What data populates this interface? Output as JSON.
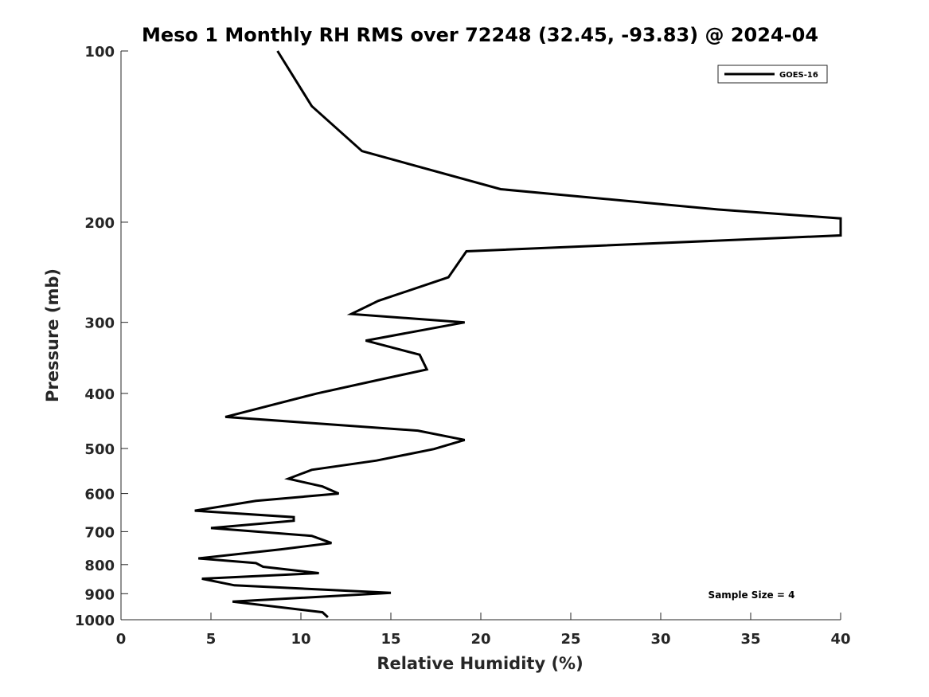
{
  "chart_data": {
    "type": "line",
    "title": "Meso 1 Monthly RH RMS over 72248 (32.45, -93.83) @ 2024-04",
    "xlabel": "Relative Humidity (%)",
    "ylabel": "Pressure (mb)",
    "xlim": [
      0,
      40
    ],
    "ylim": [
      100,
      1000
    ],
    "y_scale": "log",
    "y_direction": "reversed",
    "x_ticks": [
      0,
      5,
      10,
      15,
      20,
      25,
      30,
      35,
      40
    ],
    "y_ticks": [
      100,
      200,
      300,
      400,
      500,
      600,
      700,
      800,
      900,
      1000
    ],
    "grid": false,
    "legend_position": "top-right",
    "series": [
      {
        "name": "GOES-16",
        "color": "#000000",
        "x": [
          8.7,
          10.6,
          13.4,
          21.1,
          33.2,
          40,
          40,
          19.2,
          18.2,
          14.3,
          12.8,
          19.1,
          13.6,
          16.6,
          17.0,
          14.1,
          10.9,
          5.8,
          16.5,
          19.1,
          17.4,
          14.2,
          10.6,
          9.3,
          11.2,
          12.1,
          7.5,
          4.1,
          9.6,
          9.6,
          5.0,
          10.6,
          11.7,
          8.9,
          4.3,
          7.5,
          7.9,
          11.0,
          4.5,
          6.3,
          15.0,
          6.2,
          11.2,
          11.5
        ],
        "y": [
          100,
          125,
          150,
          175,
          190,
          197,
          211,
          225,
          250,
          275,
          290,
          300,
          323,
          342,
          363,
          380,
          400,
          440,
          465,
          483,
          501,
          525,
          545,
          565,
          583,
          600,
          618,
          643,
          660,
          670,
          690,
          712,
          733,
          752,
          780,
          795,
          807,
          828,
          847,
          870,
          897,
          929,
          970,
          990
        ]
      }
    ],
    "annotation": "Sample Size = 4"
  }
}
